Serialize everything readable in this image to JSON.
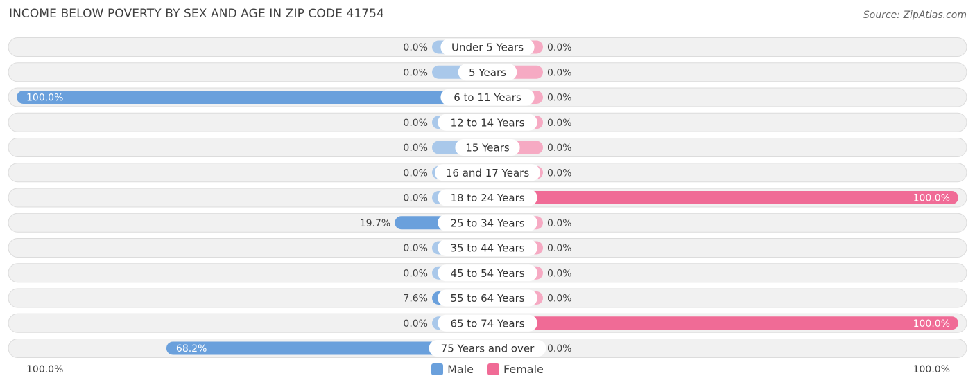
{
  "title": "INCOME BELOW POVERTY BY SEX AND AGE IN ZIP CODE 41754",
  "source": "Source: ZipAtlas.com",
  "axis": {
    "left_label": "100.0%",
    "right_label": "100.0%"
  },
  "legend": {
    "male_label": "Male",
    "female_label": "Female"
  },
  "colors": {
    "male_strong": "#6aa0dc",
    "male_light": "#a9c8ea",
    "female_strong": "#f06b96",
    "female_light": "#f6aac3",
    "row_bg": "#f1f1f1",
    "row_border": "#dcdcdc"
  },
  "chart_data": {
    "type": "bar",
    "orientation": "horizontal-diverging",
    "title": "INCOME BELOW POVERTY BY SEX AND AGE IN ZIP CODE 41754",
    "xlim": [
      -100,
      100
    ],
    "legend_position": "bottom-center",
    "categories": [
      "Under 5 Years",
      "5 Years",
      "6 to 11 Years",
      "12 to 14 Years",
      "15 Years",
      "16 and 17 Years",
      "18 to 24 Years",
      "25 to 34 Years",
      "35 to 44 Years",
      "45 to 54 Years",
      "55 to 64 Years",
      "65 to 74 Years",
      "75 Years and over"
    ],
    "series": [
      {
        "name": "Male",
        "values": [
          0.0,
          0.0,
          100.0,
          0.0,
          0.0,
          0.0,
          0.0,
          19.7,
          0.0,
          0.0,
          7.6,
          0.0,
          68.2
        ],
        "labels": [
          "0.0%",
          "0.0%",
          "100.0%",
          "0.0%",
          "0.0%",
          "0.0%",
          "0.0%",
          "19.7%",
          "0.0%",
          "0.0%",
          "7.6%",
          "0.0%",
          "68.2%"
        ]
      },
      {
        "name": "Female",
        "values": [
          0.0,
          0.0,
          0.0,
          0.0,
          0.0,
          0.0,
          100.0,
          0.0,
          0.0,
          0.0,
          0.0,
          100.0,
          0.0
        ],
        "labels": [
          "0.0%",
          "0.0%",
          "0.0%",
          "0.0%",
          "0.0%",
          "0.0%",
          "100.0%",
          "0.0%",
          "0.0%",
          "0.0%",
          "0.0%",
          "100.0%",
          "0.0%"
        ]
      }
    ]
  }
}
